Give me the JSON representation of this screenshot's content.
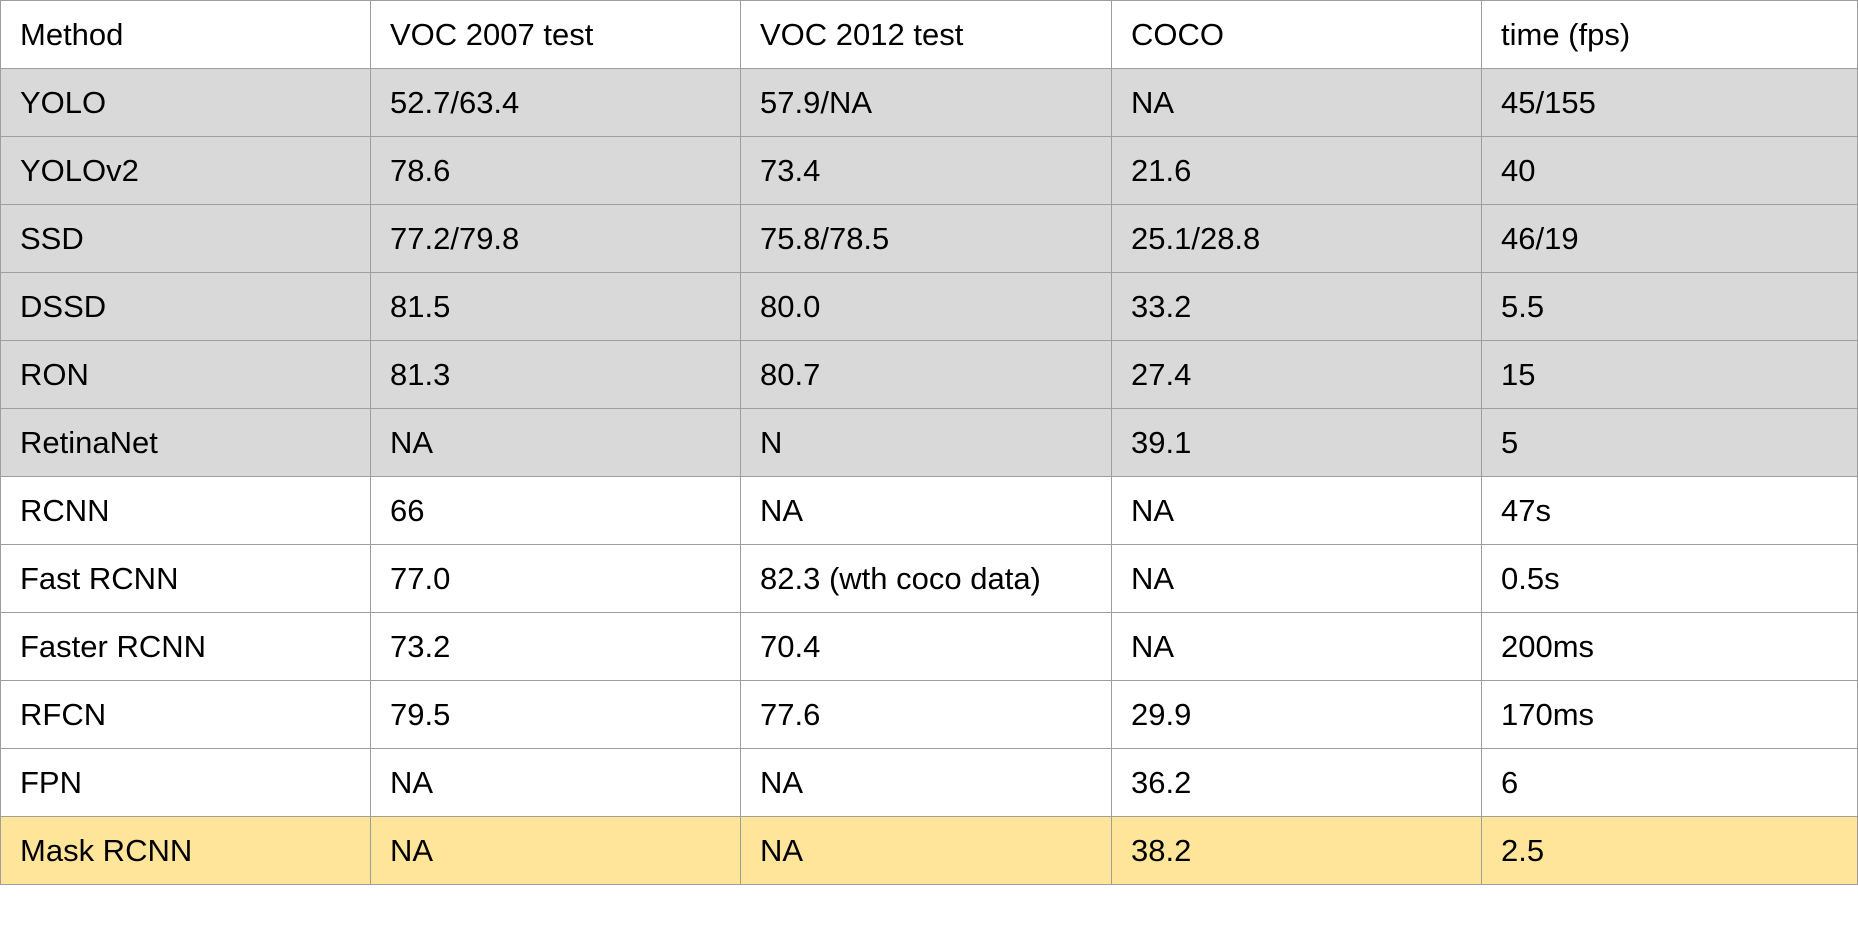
{
  "table": {
    "columns": [
      "Method",
      "VOC 2007 test",
      "VOC 2012 test",
      "COCO",
      "time (fps)"
    ],
    "rows": [
      {
        "shade": "gray",
        "cells": [
          "YOLO",
          "52.7/63.4",
          "57.9/NA",
          "NA",
          "45/155"
        ]
      },
      {
        "shade": "gray",
        "cells": [
          "YOLOv2",
          "78.6",
          "73.4",
          "21.6",
          "40"
        ]
      },
      {
        "shade": "gray",
        "cells": [
          "SSD",
          "77.2/79.8",
          "75.8/78.5",
          "25.1/28.8",
          "46/19"
        ]
      },
      {
        "shade": "gray",
        "cells": [
          "DSSD",
          "81.5",
          "80.0",
          "33.2",
          "5.5"
        ]
      },
      {
        "shade": "gray",
        "cells": [
          "RON",
          "81.3",
          "80.7",
          "27.4",
          "15"
        ]
      },
      {
        "shade": "gray",
        "cells": [
          "RetinaNet",
          "NA",
          "N",
          "39.1",
          "5"
        ]
      },
      {
        "shade": "none",
        "cells": [
          "RCNN",
          "66",
          "NA",
          "NA",
          "47s"
        ]
      },
      {
        "shade": "none",
        "cells": [
          "Fast RCNN",
          "77.0",
          "82.3 (wth coco data)",
          "NA",
          "0.5s"
        ]
      },
      {
        "shade": "none",
        "cells": [
          "Faster RCNN",
          "73.2",
          "70.4",
          "NA",
          "200ms"
        ]
      },
      {
        "shade": "none",
        "cells": [
          "RFCN",
          "79.5",
          "77.6",
          "29.9",
          "170ms"
        ]
      },
      {
        "shade": "none",
        "cells": [
          "FPN",
          "NA",
          "NA",
          "36.2",
          "6"
        ]
      },
      {
        "shade": "yellow",
        "cells": [
          "Mask RCNN",
          "NA",
          "NA",
          "38.2",
          "2.5"
        ]
      }
    ]
  },
  "colors": {
    "gray_row": "#d9d9d9",
    "yellow_row": "#ffe599",
    "border": "#9e9e9e"
  }
}
